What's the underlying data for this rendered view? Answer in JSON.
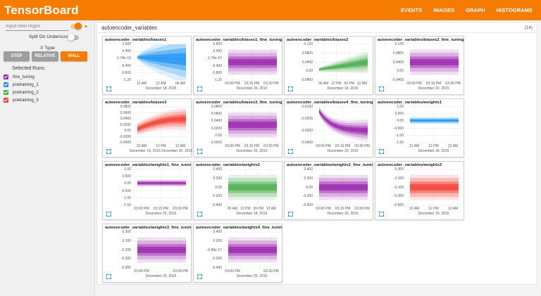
{
  "app": {
    "title": "TensorBoard",
    "nav": [
      "EVENTS",
      "IMAGES",
      "GRAPH",
      "HISTOGRAMS"
    ],
    "active_nav": "HISTOGRAMS"
  },
  "sidebar": {
    "regex_placeholder": "input new regex",
    "split_label": "Split On Underscores:",
    "xtype_label": "X Type:",
    "xtype_buttons": [
      "STEP",
      "RELATIVE",
      "WALL"
    ],
    "xtype_selected": "WALL",
    "runs_label": "Selected Runs:",
    "runs": [
      {
        "name": "fine_tuning",
        "color": "#9c27b0"
      },
      {
        "name": "pretraining_1",
        "color": "#2196f3"
      },
      {
        "name": "pretraining_2",
        "color": "#4caf50"
      },
      {
        "name": "pretraining_3",
        "color": "#f44336"
      }
    ]
  },
  "section": {
    "title": "autoencoder_variables",
    "count": "(14)"
  },
  "charts": [
    {
      "title": "autoencoder_variables/biases1",
      "run": "pretraining_1",
      "color": "#2196f3",
      "shape": "fan",
      "yticks": [
        "0.800",
        "0.400",
        "-1.78e-15",
        "-0.400",
        "-0.800",
        "-1.20"
      ],
      "xticks": [
        "12 AM",
        "12 AM",
        "06 AM"
      ],
      "date": "December 18, 2015"
    },
    {
      "title": "autoencoder_variables/biases1_fine_tuning",
      "run": "fine_tuning",
      "color": "#9c27b0",
      "shape": "flat",
      "yticks": [
        "0.800",
        "0.400",
        "-1.78e-15",
        "-0.400",
        "-0.800",
        "-1.20"
      ],
      "xticks": [
        "03:00 PM",
        "03:15 PM",
        "03:30 PM"
      ],
      "date": "December 20, 2015"
    },
    {
      "title": "autoencoder_variables/biases2",
      "run": "pretraining_2",
      "color": "#4caf50",
      "shape": "rise",
      "yticks": [
        "0.120",
        "0.0800",
        "0.0400",
        "0.00",
        "-0.0400"
      ],
      "xticks": [
        "06 AM",
        "12 PM",
        "06 PM",
        "12 AM"
      ],
      "date": "December 18, 2015"
    },
    {
      "title": "autoencoder_variables/biases2_fine_tuning",
      "run": "fine_tuning",
      "color": "#9c27b0",
      "shape": "flat",
      "yticks": [
        "0.120",
        "0.0800",
        "0.0400",
        "0.00",
        "-0.0400"
      ],
      "xticks": [
        "03:00 PM",
        "03:15 PM",
        "03:30 PM"
      ],
      "date": "December 20, 2015"
    },
    {
      "title": "autoencoder_variables/biases3",
      "run": "pretraining_3",
      "color": "#f44336",
      "shape": "curve",
      "yticks": [
        "0.0800",
        "0.0600",
        "0.0400",
        "0.0200",
        "0.00",
        "-0.0200",
        "-0.0400"
      ],
      "xticks": [
        "03 AM",
        "12 PM",
        "12 AM"
      ],
      "date": "December 19, 2015   December 20, 2015"
    },
    {
      "title": "autoencoder_variables/biases3_fine_tuning",
      "run": "fine_tuning",
      "color": "#9c27b0",
      "shape": "flat",
      "yticks": [
        "0.0800",
        "0.0600",
        "0.0400",
        "0.0200",
        "0.00",
        "-0.0200"
      ],
      "xticks": [
        "03:00 PM",
        "03:15 PM",
        "03:30 PM"
      ],
      "date": "December 20, 2015"
    },
    {
      "title": "autoencoder_variables/biases4_fine_tuning",
      "run": "fine_tuning",
      "color": "#9c27b0",
      "shape": "decay",
      "yticks": [
        "-0.0100",
        "-0.0200",
        "-0.0300",
        "-0.0400"
      ],
      "xticks": [
        "03:00 PM",
        "03:15 PM",
        "03:30 PM"
      ],
      "date": "December 20, 2015"
    },
    {
      "title": "autoencoder_variables/weights1",
      "run": "pretraining_1",
      "color": "#2196f3",
      "shape": "thin",
      "yticks": [
        "1.00",
        "0.500",
        "0.00",
        "-0.500",
        "-1.00",
        "-1.50"
      ],
      "xticks": [
        "12 AM",
        "12 PM",
        "12 AM"
      ],
      "date": "December 18, 2015"
    },
    {
      "title": "autoencoder_variables/weights1_fine_tuning",
      "run": "fine_tuning",
      "color": "#9c27b0",
      "shape": "thin",
      "yticks": [
        "1.00",
        "0.500",
        "0.00",
        "-0.500",
        "-1.00",
        "-1.50"
      ],
      "xticks": [
        "03:00 PM",
        "03:15 PM",
        "03:30 PM"
      ],
      "date": "December 20, 2015"
    },
    {
      "title": "autoencoder_variables/weights2",
      "run": "pretraining_2",
      "color": "#4caf50",
      "shape": "flat",
      "yticks": [
        "0.400",
        "0.200",
        "0.00",
        "-0.200",
        "-0.400"
      ],
      "xticks": [
        "06 AM",
        "12 PM",
        "06 PM",
        "12 AM"
      ],
      "date": "December 18, 2015"
    },
    {
      "title": "autoencoder_variables/weights2_fine_tuning",
      "run": "fine_tuning",
      "color": "#9c27b0",
      "shape": "flat",
      "yticks": [
        "0.400",
        "0.200",
        "0.00",
        "-0.200",
        "-0.400"
      ],
      "xticks": [
        "03:00 PM",
        "03:15 PM",
        "03:30 PM"
      ],
      "date": "December 20, 2015"
    },
    {
      "title": "autoencoder_variables/weights3",
      "run": "pretraining_3",
      "color": "#f44336",
      "shape": "flat",
      "yticks": [
        "0.300",
        "0.100",
        "-0.100",
        "-0.300",
        "-0.500"
      ],
      "xticks": [
        "12 AM",
        "12 PM",
        "12 AM"
      ],
      "date": "December 19, 2015"
    },
    {
      "title": "autoencoder_variables/weights3_fine_tuning",
      "run": "fine_tuning",
      "color": "#9c27b0",
      "shape": "flat",
      "yticks": [
        "0.300",
        "0.100",
        "-0.100",
        "-0.300",
        "-0.500"
      ],
      "xticks": [
        "03:00 PM",
        "03:30 PM"
      ],
      "date": "December 20, 2015"
    },
    {
      "title": "autoencoder_variables/weights4_fine_tuning",
      "run": "fine_tuning",
      "color": "#9c27b0",
      "shape": "flat",
      "yticks": [
        "0.400",
        "0.200",
        "-6.88e-17",
        "-0.200",
        "-0.400"
      ],
      "xticks": [
        "03:00 PM",
        "03:30 PM"
      ],
      "date": "December 20, 2015"
    }
  ]
}
